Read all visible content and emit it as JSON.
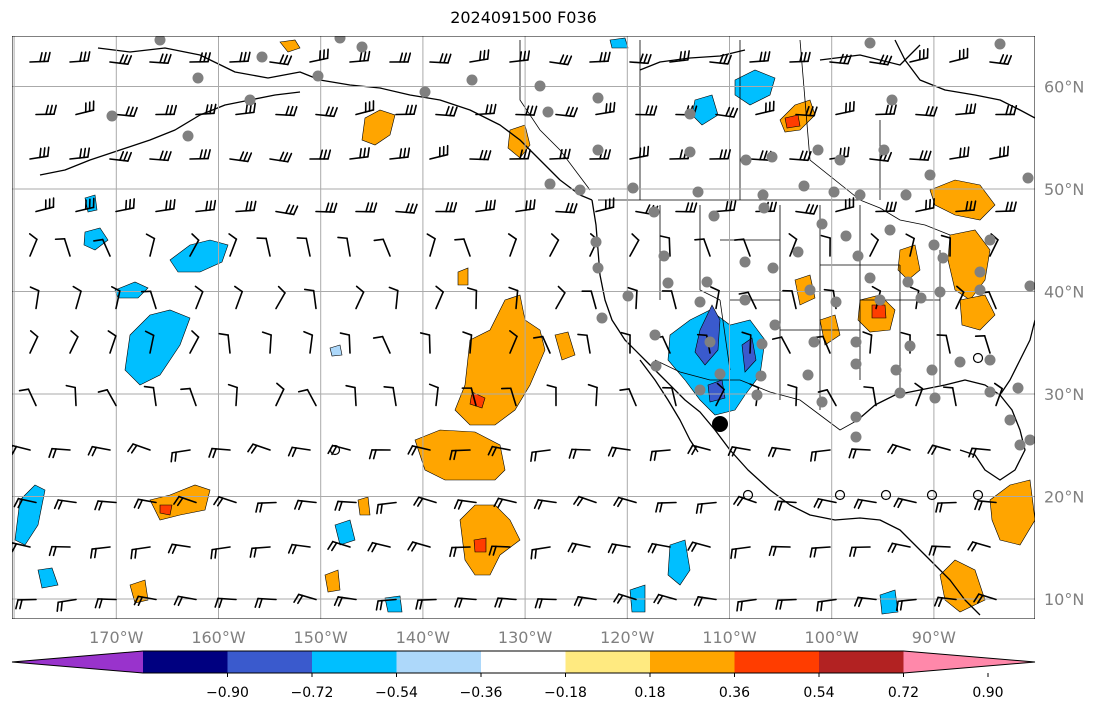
{
  "title": "2024091500 F036",
  "lon_labels": [
    {
      "text": "170°W",
      "lon": -170
    },
    {
      "text": "160°W",
      "lon": -160
    },
    {
      "text": "150°W",
      "lon": -150
    },
    {
      "text": "140°W",
      "lon": -140
    },
    {
      "text": "130°W",
      "lon": -130
    },
    {
      "text": "120°W",
      "lon": -120
    },
    {
      "text": "110°W",
      "lon": -110
    },
    {
      "text": "100°W",
      "lon": -100
    },
    {
      "text": "90°W",
      "lon": -90
    }
  ],
  "lat_labels": [
    {
      "text": "60°N",
      "lat": 60
    },
    {
      "text": "50°N",
      "lat": 50
    },
    {
      "text": "40°N",
      "lat": 40
    },
    {
      "text": "30°N",
      "lat": 30
    },
    {
      "text": "20°N",
      "lat": 20
    },
    {
      "text": "10°N",
      "lat": 10
    }
  ],
  "colorbar": {
    "colors": [
      "#9933cc",
      "#000080",
      "#3a5acd",
      "#00bfff",
      "#add8fa",
      "#ffffff",
      "#ffea80",
      "#ffa500",
      "#ff3d00",
      "#b22222",
      "#ff88aa"
    ],
    "labels": [
      "−0.90",
      "−0.72",
      "−0.54",
      "−0.36",
      "−0.18",
      "0.18",
      "0.36",
      "0.54",
      "0.72",
      "0.90"
    ]
  },
  "grid_color": "#aaaaaa",
  "land_color": "#000000"
}
